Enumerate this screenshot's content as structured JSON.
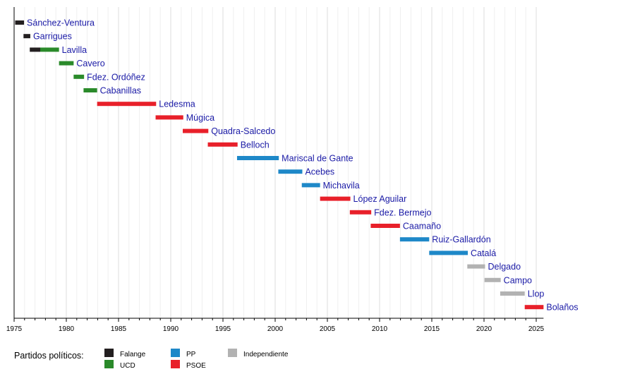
{
  "chart_data": {
    "type": "timeline",
    "title": "",
    "xlabel": "",
    "ylabel": "",
    "xlim": [
      1975,
      2025.7
    ],
    "xticks_major": [
      1975,
      1980,
      1985,
      1990,
      1995,
      2000,
      2005,
      2010,
      2015,
      2020,
      2025
    ],
    "xticks_minor_step": 1,
    "grid": true,
    "parties": {
      "Falange": "#231f20",
      "UCD": "#2a8a2a",
      "PP": "#1e88c8",
      "PSOE": "#e8202a",
      "Independiente": "#b2b2b2"
    },
    "rows": [
      {
        "name": "Sánchez-Ventura",
        "segments": [
          {
            "party": "Falange",
            "start": 1975.1,
            "end": 1975.95
          }
        ]
      },
      {
        "name": "Garrigues",
        "segments": [
          {
            "party": "Falange",
            "start": 1975.9,
            "end": 1976.55
          }
        ]
      },
      {
        "name": "Lavilla",
        "segments": [
          {
            "party": "Falange",
            "start": 1976.5,
            "end": 1977.5
          },
          {
            "party": "UCD",
            "start": 1977.5,
            "end": 1979.3
          }
        ]
      },
      {
        "name": "Cavero",
        "segments": [
          {
            "party": "UCD",
            "start": 1979.3,
            "end": 1980.7
          }
        ]
      },
      {
        "name": "Fdez. Ordóñez",
        "segments": [
          {
            "party": "UCD",
            "start": 1980.7,
            "end": 1981.7
          }
        ]
      },
      {
        "name": "Cabanillas",
        "segments": [
          {
            "party": "UCD",
            "start": 1981.65,
            "end": 1982.95
          }
        ]
      },
      {
        "name": "Ledesma",
        "segments": [
          {
            "party": "PSOE",
            "start": 1982.95,
            "end": 1988.6
          }
        ]
      },
      {
        "name": "Múgica",
        "segments": [
          {
            "party": "PSOE",
            "start": 1988.55,
            "end": 1991.2
          }
        ]
      },
      {
        "name": "Quadra-Salcedo",
        "segments": [
          {
            "party": "PSOE",
            "start": 1991.15,
            "end": 1993.6
          }
        ]
      },
      {
        "name": "Belloch",
        "segments": [
          {
            "party": "PSOE",
            "start": 1993.55,
            "end": 1996.4
          }
        ]
      },
      {
        "name": "Mariscal de Gante",
        "segments": [
          {
            "party": "PP",
            "start": 1996.35,
            "end": 2000.35
          }
        ]
      },
      {
        "name": "Acebes",
        "segments": [
          {
            "party": "PP",
            "start": 2000.3,
            "end": 2002.6
          }
        ]
      },
      {
        "name": "Michavila",
        "segments": [
          {
            "party": "PP",
            "start": 2002.55,
            "end": 2004.3
          }
        ]
      },
      {
        "name": "López Aguilar",
        "segments": [
          {
            "party": "PSOE",
            "start": 2004.3,
            "end": 2007.2
          }
        ]
      },
      {
        "name": "Fdez. Bermejo",
        "segments": [
          {
            "party": "PSOE",
            "start": 2007.15,
            "end": 2009.2
          }
        ]
      },
      {
        "name": "Caamaño",
        "segments": [
          {
            "party": "PSOE",
            "start": 2009.15,
            "end": 2011.95
          }
        ]
      },
      {
        "name": "Ruiz-Gallardón",
        "segments": [
          {
            "party": "PP",
            "start": 2011.95,
            "end": 2014.75
          }
        ]
      },
      {
        "name": "Catalá",
        "segments": [
          {
            "party": "PP",
            "start": 2014.75,
            "end": 2018.45
          }
        ]
      },
      {
        "name": "Delgado",
        "segments": [
          {
            "party": "Independiente",
            "start": 2018.4,
            "end": 2020.1
          }
        ]
      },
      {
        "name": "Campo",
        "segments": [
          {
            "party": "Independiente",
            "start": 2020.05,
            "end": 2021.6
          }
        ]
      },
      {
        "name": "Llop",
        "segments": [
          {
            "party": "Independiente",
            "start": 2021.55,
            "end": 2023.9
          }
        ]
      },
      {
        "name": "Bolaños",
        "segments": [
          {
            "party": "PSOE",
            "start": 2023.9,
            "end": 2025.7
          }
        ]
      }
    ],
    "legend": {
      "title": "Partidos políticos:",
      "position": "bottom-left",
      "entries": [
        {
          "label": "Falange",
          "color": "#231f20"
        },
        {
          "label": "UCD",
          "color": "#2a8a2a"
        },
        {
          "label": "PP",
          "color": "#1e88c8"
        },
        {
          "label": "PSOE",
          "color": "#e8202a"
        },
        {
          "label": "Independiente",
          "color": "#b2b2b2"
        }
      ]
    }
  }
}
